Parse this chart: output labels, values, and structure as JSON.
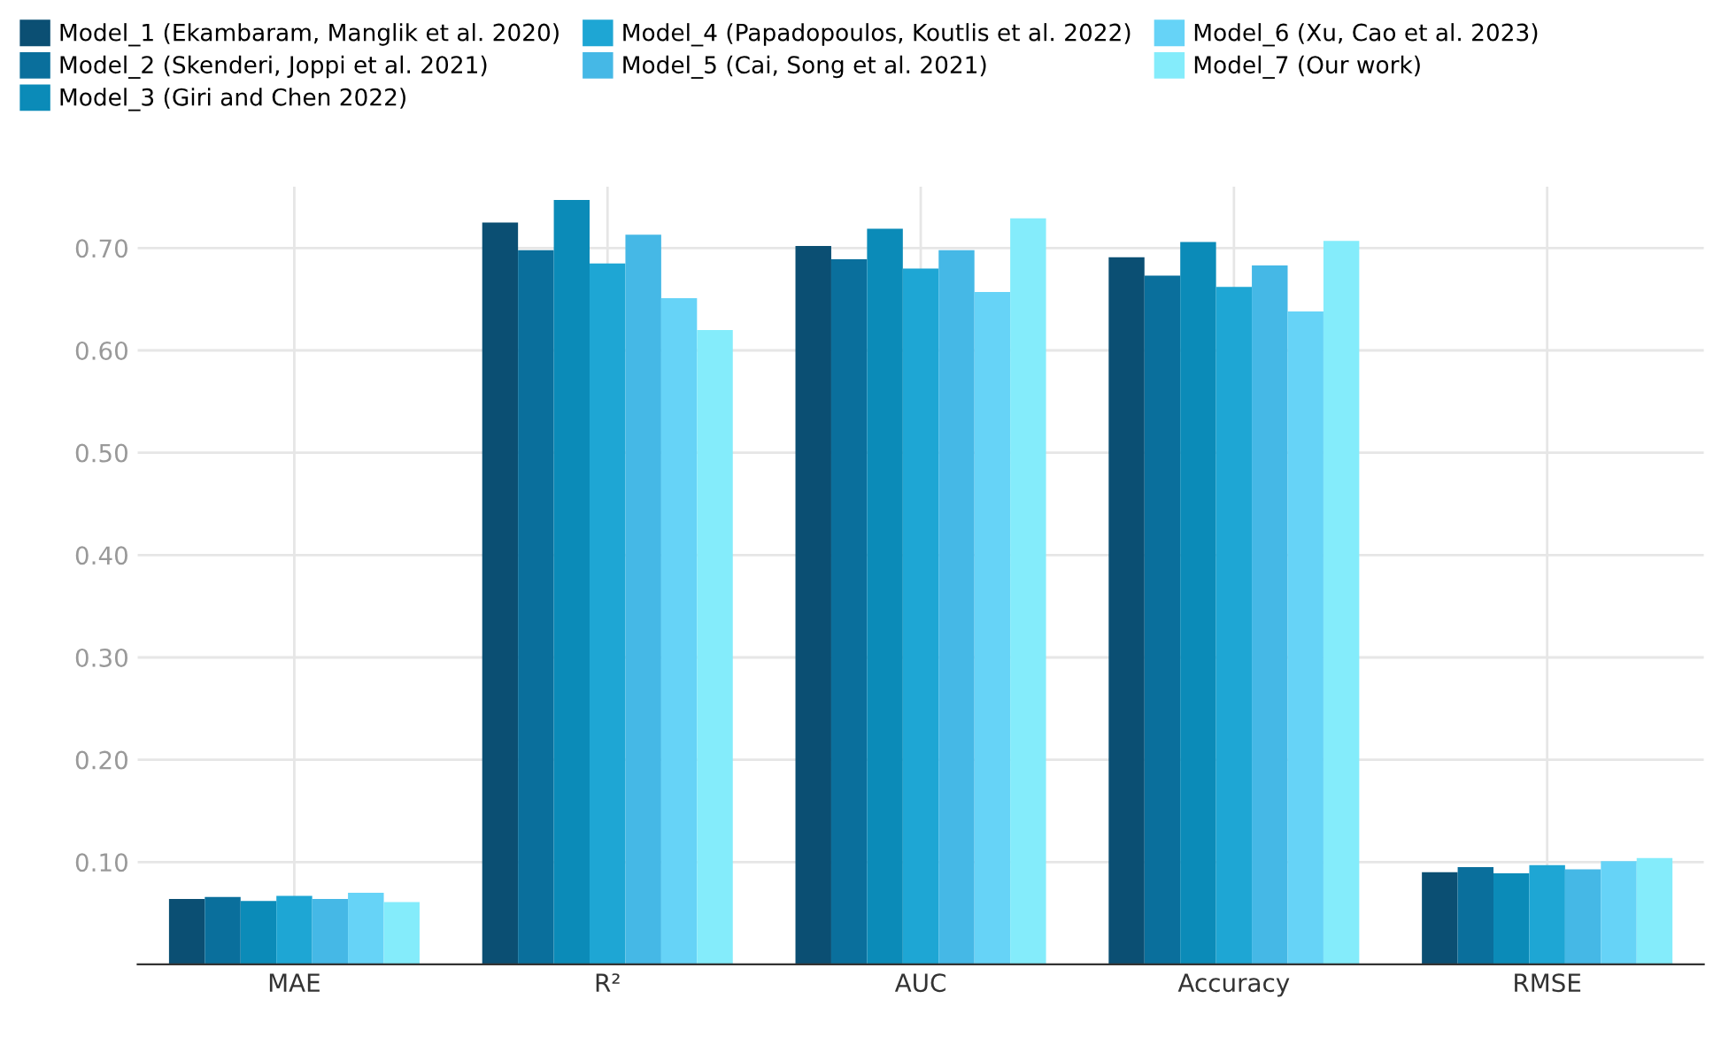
{
  "chart_data": {
    "type": "bar",
    "categories": [
      "MAE",
      "R²",
      "AUC",
      "Accuracy",
      "RMSE"
    ],
    "series": [
      {
        "name": "Model_1 (Ekambaram, Manglik et al. 2020)",
        "color": "#0b4f73",
        "values": [
          0.064,
          0.725,
          0.702,
          0.691,
          0.09
        ]
      },
      {
        "name": "Model_2 (Skenderi, Joppi et al. 2021)",
        "color": "#0a6f9c",
        "values": [
          0.066,
          0.698,
          0.689,
          0.673,
          0.095
        ]
      },
      {
        "name": "Model_3 (Giri and Chen 2022)",
        "color": "#0b8bb8",
        "values": [
          0.062,
          0.747,
          0.719,
          0.706,
          0.089
        ]
      },
      {
        "name": "Model_4 (Papadopoulos, Koutlis et al. 2022)",
        "color": "#1ea6d4",
        "values": [
          0.067,
          0.685,
          0.68,
          0.662,
          0.097
        ]
      },
      {
        "name": "Model_5 (Cai, Song et al. 2021)",
        "color": "#45b8e6",
        "values": [
          0.064,
          0.713,
          0.698,
          0.683,
          0.093
        ]
      },
      {
        "name": "Model_6 (Xu, Cao et al. 2023)",
        "color": "#66d3f7",
        "values": [
          0.07,
          0.651,
          0.657,
          0.638,
          0.101
        ]
      },
      {
        "name": "Model_7 (Our work)",
        "color": "#84ecfb",
        "values": [
          0.061,
          0.62,
          0.729,
          0.707,
          0.104
        ]
      }
    ],
    "ylim": [
      0,
      0.76
    ],
    "yticks": [
      {
        "value": 0.1,
        "label": "0.10"
      },
      {
        "value": 0.2,
        "label": "0.20"
      },
      {
        "value": 0.3,
        "label": "0.30"
      },
      {
        "value": 0.4,
        "label": "0.40"
      },
      {
        "value": 0.5,
        "label": "0.50"
      },
      {
        "value": 0.6,
        "label": "0.60"
      },
      {
        "value": 0.7,
        "label": "0.70"
      }
    ],
    "grid": true,
    "legend": "top left"
  }
}
